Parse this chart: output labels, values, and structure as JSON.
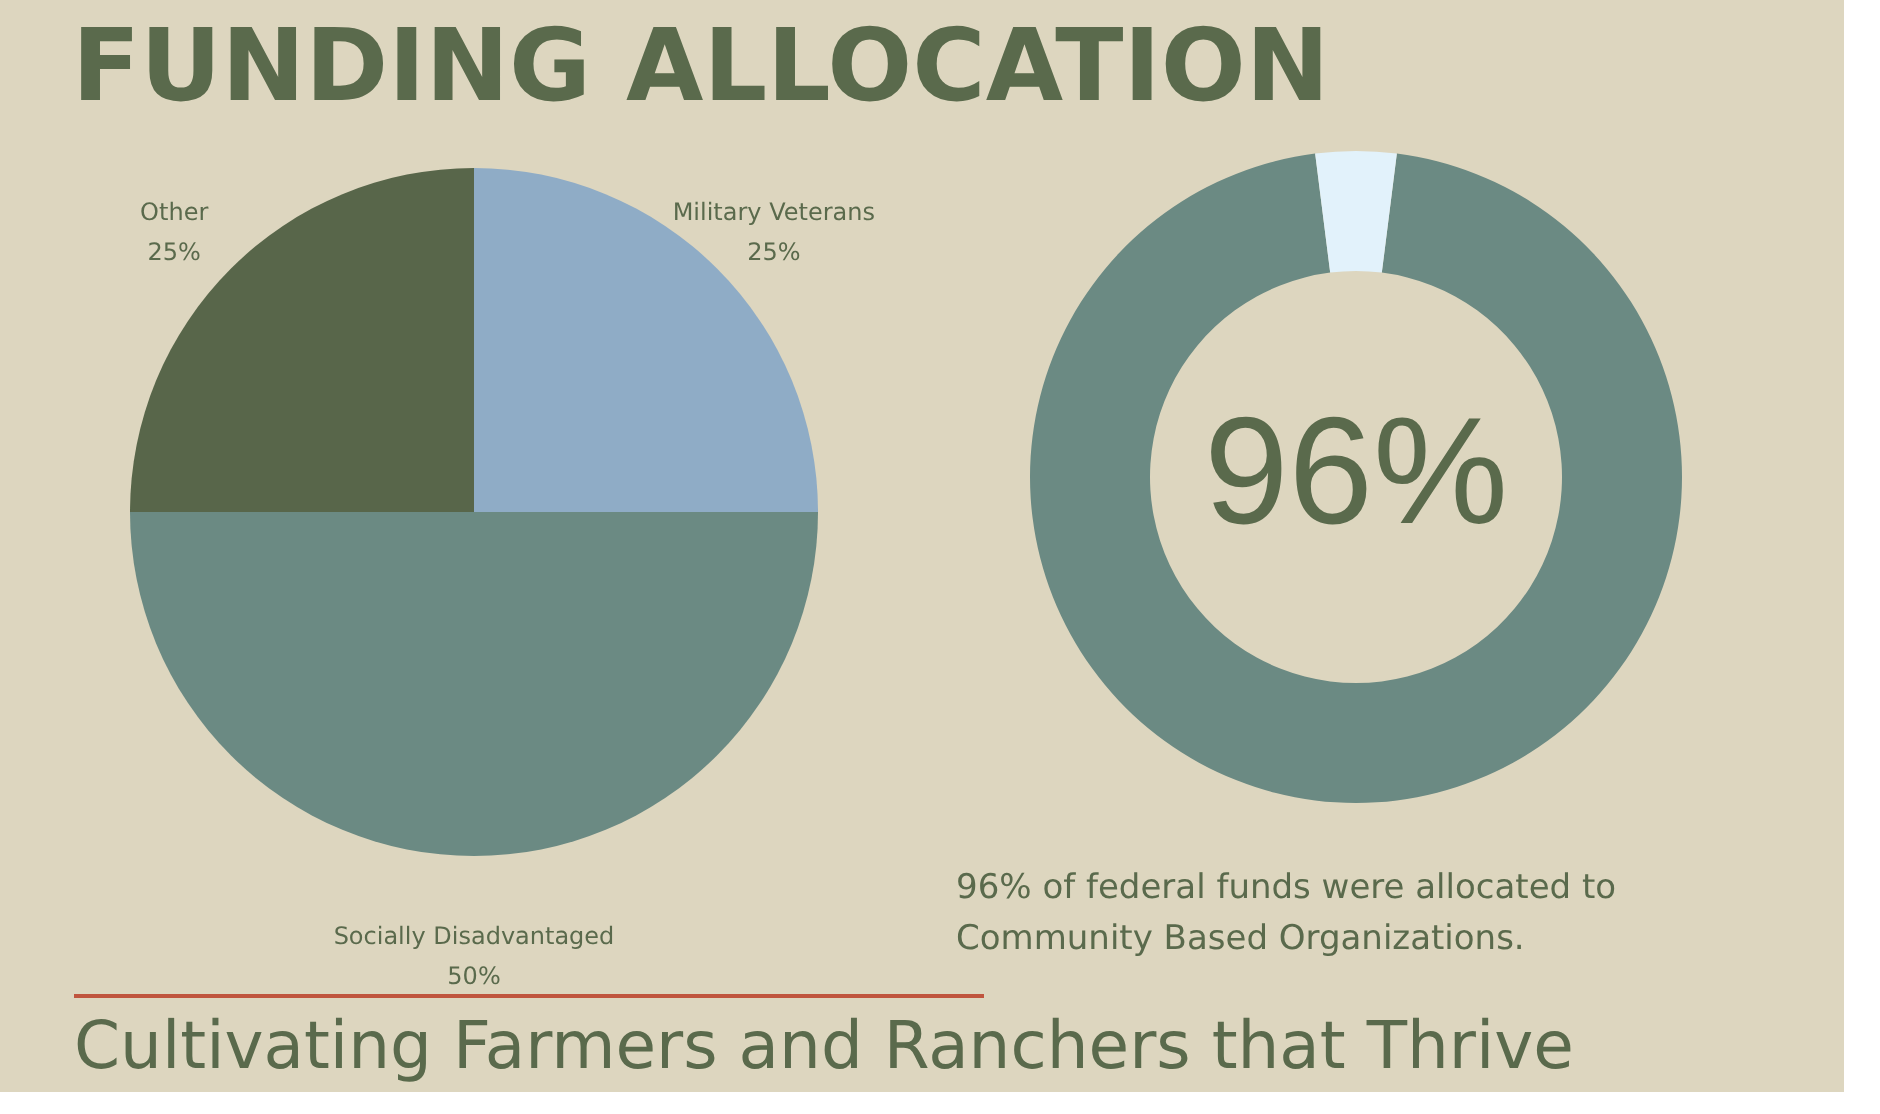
{
  "chart_data": [
    {
      "type": "pie",
      "title": "FUNDING ALLOCATION",
      "categories": [
        "Military Veterans",
        "Socially Disadvantaged",
        "Other"
      ],
      "values": [
        25,
        50,
        25
      ],
      "colors": [
        "#8facc6",
        "#6b8a83",
        "#58664a"
      ],
      "value_labels": [
        "25%",
        "50%",
        "25%"
      ],
      "legend": false,
      "annotations": [
        "Cultivating Farmers and Ranchers that Thrive"
      ]
    },
    {
      "type": "donut",
      "categories": [
        null,
        null
      ],
      "values": [
        96,
        4
      ],
      "colors": [
        "#6b8a83",
        "#e2f2fb"
      ],
      "value_labels": [
        "96%",
        null
      ],
      "legend": false,
      "annotations": [
        "96% of federal funds were allocated to Community Based Organizations."
      ]
    }
  ]
}
